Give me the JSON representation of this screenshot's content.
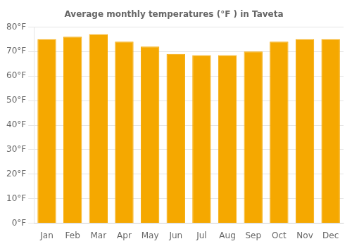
{
  "chart_data": {
    "type": "bar",
    "title": "Average monthly temperatures (°F ) in Taveta",
    "categories": [
      "Jan",
      "Feb",
      "Mar",
      "Apr",
      "May",
      "Jun",
      "Jul",
      "Aug",
      "Sep",
      "Oct",
      "Nov",
      "Dec"
    ],
    "values": [
      75,
      76,
      77,
      74,
      72,
      69,
      68.5,
      68.5,
      70,
      74,
      75,
      75
    ],
    "color": "#F5A800",
    "ylim": [
      0,
      80
    ],
    "yticks": [
      {
        "value": 0,
        "label": "0°F"
      },
      {
        "value": 10,
        "label": "10°F"
      },
      {
        "value": 20,
        "label": "20°F"
      },
      {
        "value": 30,
        "label": "30°F"
      },
      {
        "value": 40,
        "label": "40°F"
      },
      {
        "value": 50,
        "label": "50°F"
      },
      {
        "value": 60,
        "label": "60°F"
      },
      {
        "value": 70,
        "label": "70°F"
      },
      {
        "value": 80,
        "label": "80°F"
      }
    ],
    "grid": true
  }
}
